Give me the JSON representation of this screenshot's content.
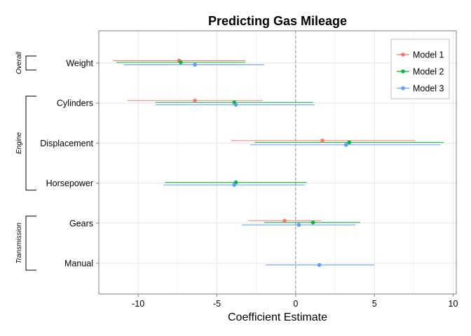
{
  "chart_data": {
    "type": "scatter",
    "subtype": "coefficient-plot",
    "title": "Predicting Gas Mileage",
    "xlabel": "Coefficient Estimate",
    "ylabel": "",
    "xlim": [
      -12.5,
      10.2
    ],
    "x_ticks": [
      -10,
      -5,
      0,
      5,
      10
    ],
    "x_tick_labels": [
      "-10",
      "-5",
      "0",
      "5",
      "10"
    ],
    "reference_line": 0,
    "grid": true,
    "legend_position": "top-right",
    "categories": [
      "Weight",
      "Cylinders",
      "Displacement",
      "Horsepower",
      "Gears",
      "Manual"
    ],
    "groups": [
      {
        "label": "Overall",
        "members": [
          "Weight"
        ]
      },
      {
        "label": "Engine",
        "members": [
          "Cylinders",
          "Displacement",
          "Horsepower"
        ]
      },
      {
        "label": "Transmission",
        "members": [
          "Gears",
          "Manual"
        ]
      }
    ],
    "series": [
      {
        "name": "Model 1",
        "color": "#F8766D",
        "points": [
          {
            "category": "Weight",
            "estimate": -7.4,
            "low": -11.6,
            "high": -3.2
          },
          {
            "category": "Cylinders",
            "estimate": -6.4,
            "low": -10.7,
            "high": -2.1
          },
          {
            "category": "Displacement",
            "estimate": 1.7,
            "low": -4.1,
            "high": 7.6
          },
          {
            "category": "Gears",
            "estimate": -0.7,
            "low": -3.0,
            "high": 1.6
          }
        ]
      },
      {
        "name": "Model 2",
        "color": "#00BA38",
        "points": [
          {
            "category": "Weight",
            "estimate": -7.3,
            "low": -11.4,
            "high": -3.2
          },
          {
            "category": "Cylinders",
            "estimate": -3.9,
            "low": -8.9,
            "high": 1.1
          },
          {
            "category": "Displacement",
            "estimate": 3.4,
            "low": -2.6,
            "high": 9.4
          },
          {
            "category": "Horsepower",
            "estimate": -3.8,
            "low": -8.3,
            "high": 0.7
          },
          {
            "category": "Gears",
            "estimate": 1.1,
            "low": -2.0,
            "high": 4.1
          }
        ]
      },
      {
        "name": "Model 3",
        "color": "#619CFF",
        "points": [
          {
            "category": "Weight",
            "estimate": -6.4,
            "low": -10.9,
            "high": -2.0
          },
          {
            "category": "Cylinders",
            "estimate": -3.8,
            "low": -8.9,
            "high": 1.2
          },
          {
            "category": "Displacement",
            "estimate": 3.2,
            "low": -2.9,
            "high": 9.2
          },
          {
            "category": "Horsepower",
            "estimate": -3.9,
            "low": -8.4,
            "high": 0.6
          },
          {
            "category": "Gears",
            "estimate": 0.2,
            "low": -3.4,
            "high": 3.8
          },
          {
            "category": "Manual",
            "estimate": 1.5,
            "low": -1.9,
            "high": 5.0
          }
        ]
      }
    ]
  }
}
